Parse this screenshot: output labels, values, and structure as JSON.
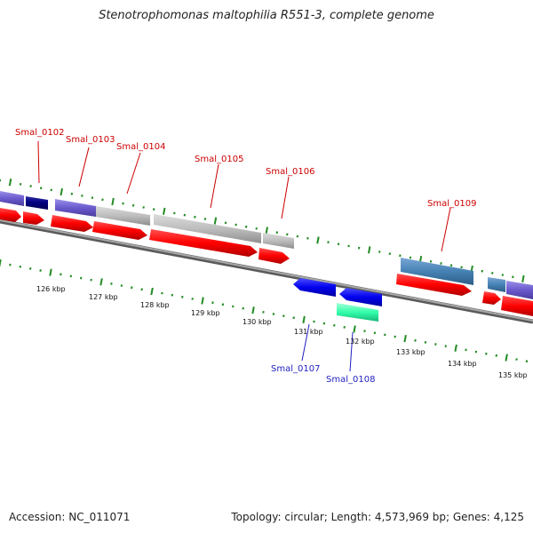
{
  "title": "Stenotrophomonas maltophilia R551-3, complete genome",
  "footer": {
    "accession": "Accession: NC_011071",
    "summary": "Topology: circular; Length: 4,573,969 bp; Genes: 4,125"
  },
  "colors": {
    "backbone": "#8a8a8a",
    "tick": "#228b22",
    "cds_forward": "#ff0000",
    "cds_reverse": "#0000ee",
    "label_forward": "#cc0000",
    "label_reverse": "#1f1fbf"
  },
  "scale_labels": [
    "126 kbp",
    "127 kbp",
    "128 kbp",
    "129 kbp",
    "130 kbp",
    "131 kbp",
    "132 kbp",
    "133 kbp",
    "134 kbp",
    "135 kbp"
  ],
  "gene_labels": [
    "Smal_0102",
    "Smal_0103",
    "Smal_0104",
    "Smal_0105",
    "Smal_0106",
    "Smal_0109",
    "Smal_0107",
    "Smal_0108"
  ]
}
